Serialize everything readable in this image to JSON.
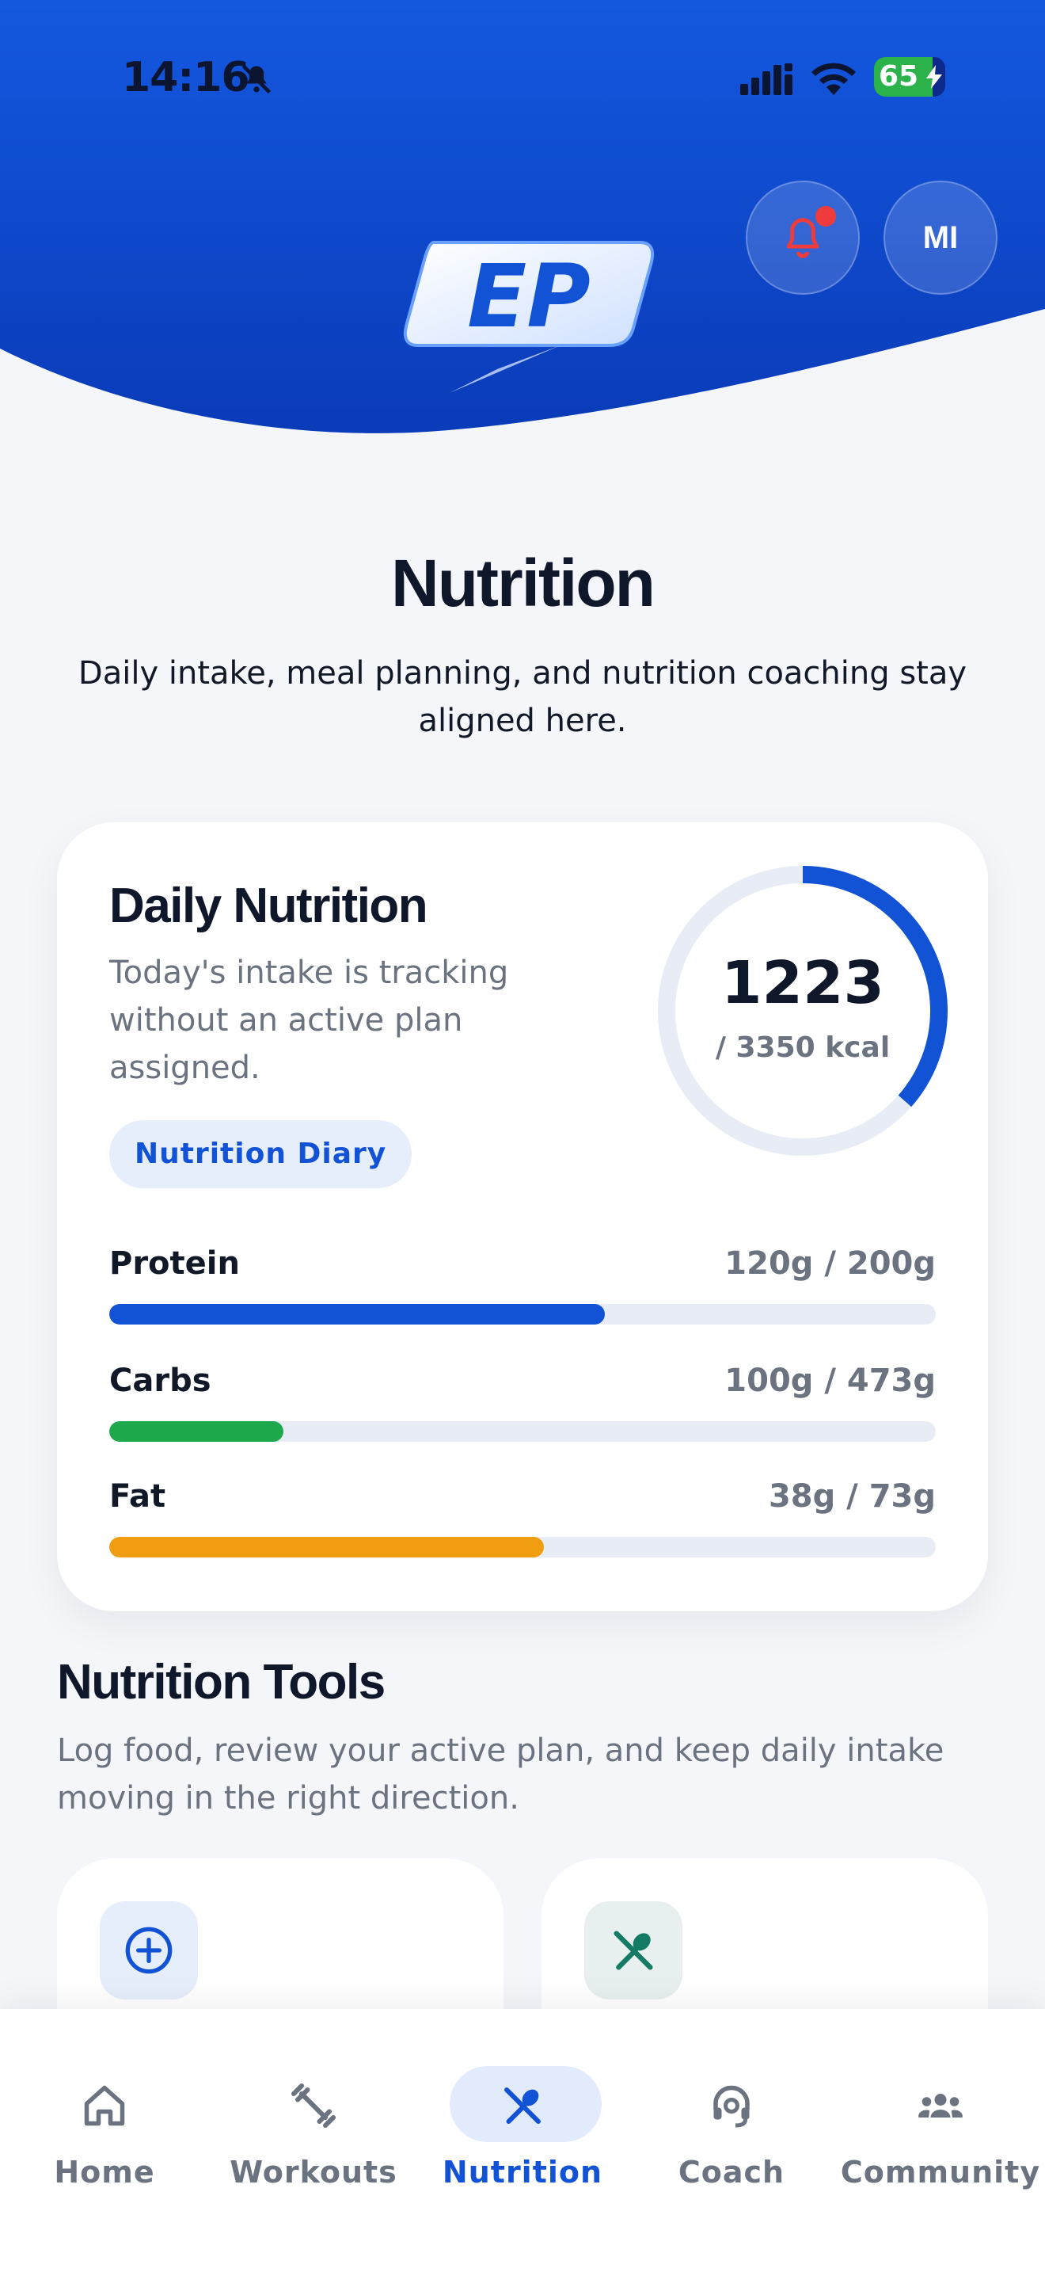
{
  "status_bar": {
    "time": "14:16",
    "battery": "65"
  },
  "header": {
    "profile_initials": "MI",
    "logo_text": "EP"
  },
  "page": {
    "title": "Nutrition",
    "subtitle": "Daily intake, meal planning, and nutrition coaching stay aligned here."
  },
  "daily_nutrition": {
    "title": "Daily Nutrition",
    "description": "Today's intake is tracking without an active plan assigned.",
    "diary_button": "Nutrition Diary",
    "calories_consumed": "1223",
    "calories_target_label": "/ 3350 kcal",
    "calories_fraction": 0.365,
    "macros": [
      {
        "name": "Protein",
        "value": "120g / 200g",
        "fraction": 0.6,
        "color": "#1253d6"
      },
      {
        "name": "Carbs",
        "value": "100g / 473g",
        "fraction": 0.211,
        "color": "#1ea84c"
      },
      {
        "name": "Fat",
        "value": "38g / 73g",
        "fraction": 0.526,
        "color": "#f19d12"
      }
    ]
  },
  "tools": {
    "title": "Nutrition Tools",
    "description": "Log food, review your active plan, and keep daily intake moving in the right direction.",
    "cards": [
      {
        "icon": "plus-circle-icon",
        "color": "#1253d6",
        "bg": "#e6eefc"
      },
      {
        "icon": "fork-spoon-icon",
        "color": "#137a63",
        "bg": "#e8efef"
      }
    ]
  },
  "nav": {
    "items": [
      {
        "label": "Home",
        "icon": "home-icon"
      },
      {
        "label": "Workouts",
        "icon": "dumbbell-icon"
      },
      {
        "label": "Nutrition",
        "icon": "fork-spoon-icon",
        "active": true
      },
      {
        "label": "Coach",
        "icon": "headset-icon"
      },
      {
        "label": "Community",
        "icon": "people-icon"
      }
    ]
  }
}
